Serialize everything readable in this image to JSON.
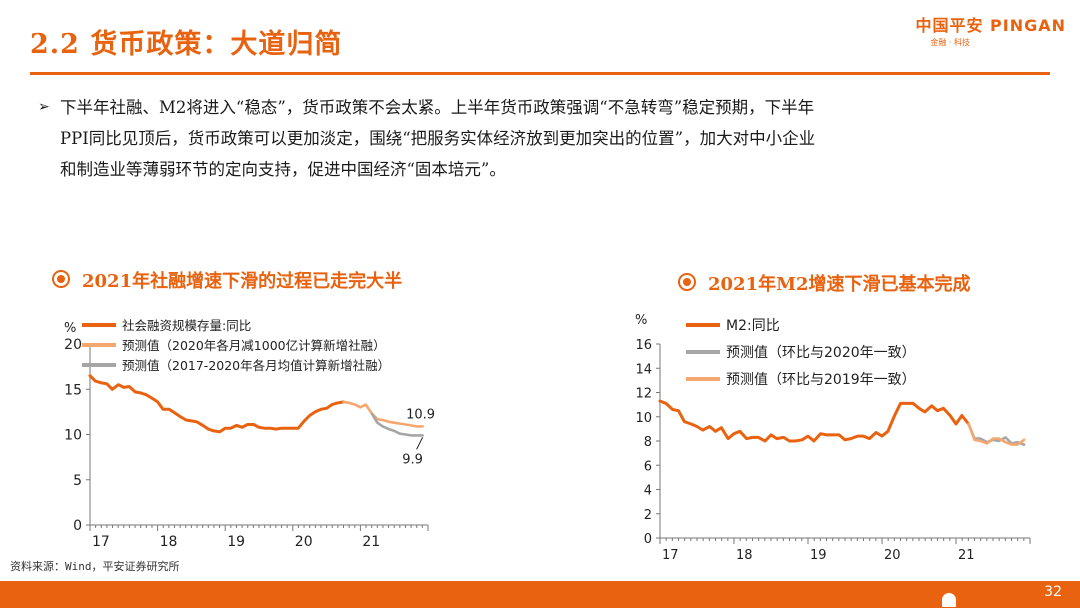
{
  "title": "2.2 货币政策：大道归简",
  "logo": {
    "main": "中国平安 PINGAN",
    "sub": "金融 · 科技"
  },
  "bullet": {
    "line1": "下半年社融、M2将进入“稳态”，货币政策不会太紧。上半年货币政策强调“不急转弯”稳定预期，下半年",
    "line2": "PPI同比见顶后，货币政策可以更加淡定，围绕“把服务实体经济放到更加突出的位置”，加大对中小企业",
    "line3": "和制造业等薄弱环节的定向支持，促进中国经济“固本培元”。"
  },
  "source": "资料来源：Wind，平安证券研究所",
  "page_number": "32",
  "colors": {
    "accent": "#e8620f",
    "forecast_light": "#f4a870",
    "forecast_gray": "#a6a6a6"
  },
  "chart_data": [
    {
      "type": "line",
      "title": "2021年社融增速下滑的过程已走完大半",
      "ylabel": "%",
      "ylim": [
        0,
        20
      ],
      "yticks": [
        "0",
        "5",
        "10",
        "15",
        "20"
      ],
      "xlim": [
        2017.0,
        2022.0
      ],
      "xticks": [
        {
          "x": 2017.0,
          "label": "17"
        },
        {
          "x": 2018.0,
          "label": "18"
        },
        {
          "x": 2019.0,
          "label": "19"
        },
        {
          "x": 2020.0,
          "label": "20"
        },
        {
          "x": 2021.0,
          "label": "21"
        }
      ],
      "legend_position": "top-left",
      "series": [
        {
          "name": "社会融资规模存量:同比",
          "color": "#e8620f",
          "x": [
            2017.0,
            2017.08,
            2017.17,
            2017.25,
            2017.33,
            2017.42,
            2017.5,
            2017.58,
            2017.67,
            2017.75,
            2017.83,
            2017.92,
            2018.0,
            2018.08,
            2018.17,
            2018.25,
            2018.33,
            2018.42,
            2018.5,
            2018.58,
            2018.67,
            2018.75,
            2018.83,
            2018.92,
            2019.0,
            2019.08,
            2019.17,
            2019.25,
            2019.33,
            2019.42,
            2019.5,
            2019.58,
            2019.67,
            2019.75,
            2019.83,
            2019.92,
            2020.0,
            2020.08,
            2020.17,
            2020.25,
            2020.33,
            2020.42,
            2020.5,
            2020.58,
            2020.67,
            2020.75
          ],
          "values": [
            16.5,
            15.9,
            15.7,
            15.6,
            15.0,
            15.5,
            15.2,
            15.3,
            14.7,
            14.6,
            14.4,
            14.0,
            13.6,
            12.8,
            12.8,
            12.4,
            12.0,
            11.6,
            11.5,
            11.4,
            11.0,
            10.6,
            10.4,
            10.3,
            10.7,
            10.7,
            11.0,
            10.8,
            11.1,
            11.1,
            10.8,
            10.7,
            10.7,
            10.6,
            10.7,
            10.7,
            10.7,
            10.7,
            11.5,
            12.1,
            12.5,
            12.8,
            12.9,
            13.3,
            13.5,
            13.6
          ]
        },
        {
          "name": "预测值（2020年各月减1000亿计算新增社融）",
          "color": "#f4a870",
          "x": [
            2020.75,
            2020.83,
            2020.92,
            2021.0,
            2021.08,
            2021.17,
            2021.25,
            2021.33,
            2021.42,
            2021.5,
            2021.58,
            2021.67,
            2021.75,
            2021.83,
            2021.92
          ],
          "values": [
            13.6,
            13.5,
            13.3,
            13.0,
            13.3,
            12.3,
            11.7,
            11.6,
            11.4,
            11.3,
            11.2,
            11.1,
            11.0,
            10.9,
            10.9
          ]
        },
        {
          "name": "预测值（2017-2020年各月均值计算新增社融）",
          "color": "#a6a6a6",
          "x": [
            2021.17,
            2021.25,
            2021.33,
            2021.42,
            2021.5,
            2021.58,
            2021.67,
            2021.75,
            2021.83,
            2021.92
          ],
          "values": [
            12.3,
            11.3,
            10.9,
            10.6,
            10.4,
            10.1,
            10.0,
            9.9,
            9.9,
            9.9
          ]
        }
      ],
      "annotations": [
        {
          "text": "10.9",
          "x": 2021.92,
          "y": 10.9
        },
        {
          "text": "9.9",
          "x": 2021.92,
          "y": 9.9
        }
      ]
    },
    {
      "type": "line",
      "title": "2021年M2增速下滑已基本完成",
      "ylabel": "%",
      "ylim": [
        0,
        16
      ],
      "yticks": [
        "0",
        "2",
        "4",
        "6",
        "8",
        "10",
        "12",
        "14",
        "16"
      ],
      "xlim": [
        2017.0,
        2022.0
      ],
      "xticks": [
        {
          "x": 2017.0,
          "label": "17"
        },
        {
          "x": 2018.0,
          "label": "18"
        },
        {
          "x": 2019.0,
          "label": "19"
        },
        {
          "x": 2020.0,
          "label": "20"
        },
        {
          "x": 2021.0,
          "label": "21"
        }
      ],
      "legend_position": "top-left",
      "series": [
        {
          "name": "M2:同比",
          "color": "#e8620f",
          "x": [
            2017.0,
            2017.08,
            2017.17,
            2017.25,
            2017.33,
            2017.42,
            2017.5,
            2017.58,
            2017.67,
            2017.75,
            2017.83,
            2017.92,
            2018.0,
            2018.08,
            2018.17,
            2018.25,
            2018.33,
            2018.42,
            2018.5,
            2018.58,
            2018.67,
            2018.75,
            2018.83,
            2018.92,
            2019.0,
            2019.08,
            2019.17,
            2019.25,
            2019.33,
            2019.42,
            2019.5,
            2019.58,
            2019.67,
            2019.75,
            2019.83,
            2019.92,
            2020.0,
            2020.08,
            2020.17,
            2020.25,
            2020.33,
            2020.42,
            2020.5,
            2020.58,
            2020.67,
            2020.75,
            2020.83,
            2020.92,
            2021.0,
            2021.08,
            2021.17
          ],
          "values": [
            11.3,
            11.1,
            10.6,
            10.5,
            9.6,
            9.4,
            9.2,
            8.9,
            9.2,
            8.8,
            9.1,
            8.2,
            8.6,
            8.8,
            8.2,
            8.3,
            8.3,
            8.0,
            8.5,
            8.2,
            8.3,
            8.0,
            8.0,
            8.1,
            8.4,
            8.0,
            8.6,
            8.5,
            8.5,
            8.5,
            8.1,
            8.2,
            8.4,
            8.4,
            8.2,
            8.7,
            8.4,
            8.8,
            10.1,
            11.1,
            11.1,
            11.1,
            10.7,
            10.4,
            10.9,
            10.5,
            10.7,
            10.1,
            9.4,
            10.1,
            9.4
          ]
        },
        {
          "name": "预测值（环比与2020年一致）",
          "color": "#a6a6a6",
          "x": [
            2021.17,
            2021.25,
            2021.33,
            2021.42,
            2021.5,
            2021.58,
            2021.67,
            2021.75,
            2021.83,
            2021.92
          ],
          "values": [
            9.4,
            8.2,
            8.2,
            7.9,
            8.1,
            8.0,
            8.3,
            7.8,
            7.9,
            7.7
          ]
        },
        {
          "name": "预测值（环比与2019年一致）",
          "color": "#f4a870",
          "x": [
            2021.17,
            2021.25,
            2021.33,
            2021.42,
            2021.5,
            2021.58,
            2021.67,
            2021.75,
            2021.83,
            2021.92
          ],
          "values": [
            9.4,
            8.1,
            8.0,
            7.8,
            8.2,
            8.2,
            7.9,
            7.7,
            7.7,
            8.1
          ]
        }
      ],
      "annotations": []
    }
  ]
}
